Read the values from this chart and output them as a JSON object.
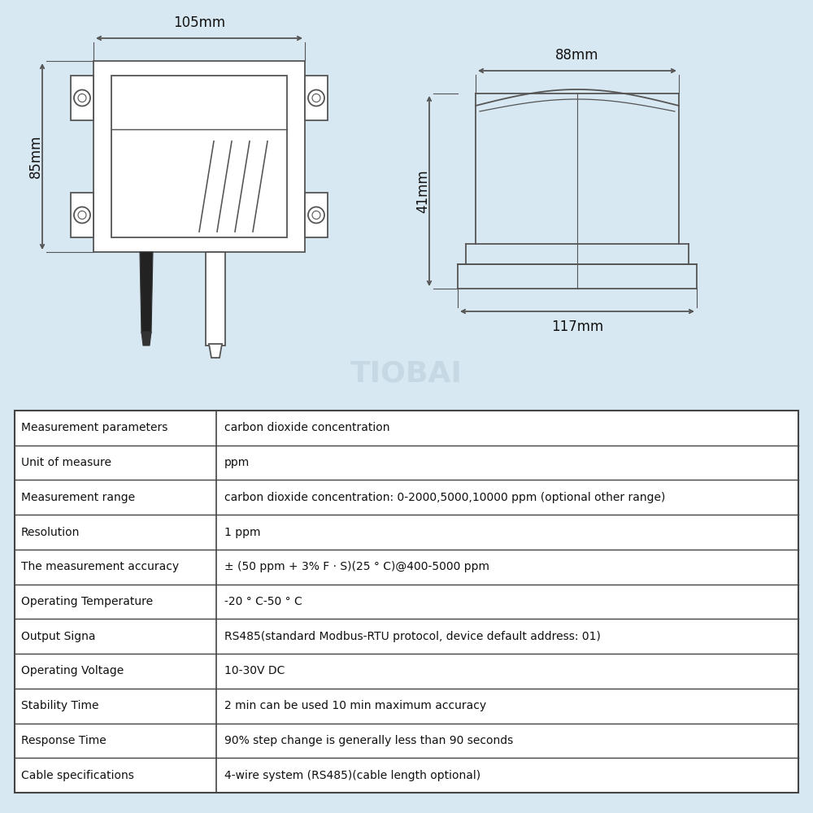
{
  "bg_color": "#d8e8f2",
  "table_bg": "#ffffff",
  "table_border": "#444444",
  "diagram_color": "#555555",
  "text_color": "#111111",
  "watermark": "TIOBAI",
  "table_rows": [
    [
      "Measurement parameters",
      "carbon dioxide concentration"
    ],
    [
      "Unit of measure",
      "ppm"
    ],
    [
      "Measurement range",
      "carbon dioxide concentration: 0-2000,5000,10000 ppm (optional other range)"
    ],
    [
      "Resolution",
      "1 ppm"
    ],
    [
      "The measurement accuracy",
      "± (50 ppm + 3% F · S)(25 ° C)@400-5000 ppm"
    ],
    [
      "Operating Temperature",
      "-20 ° C-50 ° C"
    ],
    [
      "Output Signa",
      "RS485(standard Modbus-RTU protocol, device default address: 01)"
    ],
    [
      "Operating Voltage",
      "10-30V DC"
    ],
    [
      "Stability Time",
      "2 min can be used 10 min maximum accuracy"
    ],
    [
      "Response Time",
      "90% step change is generally less than 90 seconds"
    ],
    [
      "Cable specifications",
      "4-wire system (RS485)(cable length optional)"
    ]
  ],
  "dim_105": "105mm",
  "dim_85": "85mm",
  "dim_88": "88mm",
  "dim_41": "41mm",
  "dim_117": "117mm"
}
